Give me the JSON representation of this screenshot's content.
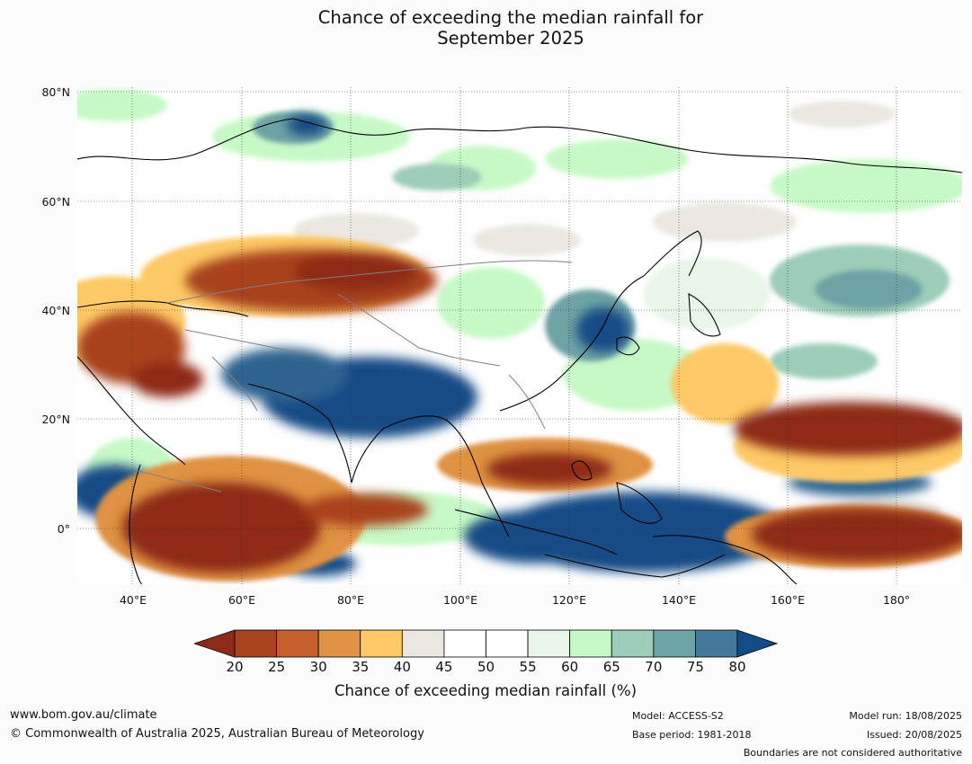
{
  "title": {
    "line1": "Chance of exceeding the median rainfall for",
    "line2": "September 2025"
  },
  "lat_labels": [
    "80°N",
    "60°N",
    "40°N",
    "20°N",
    "0°"
  ],
  "lon_labels": [
    "40°E",
    "60°E",
    "80°E",
    "100°E",
    "120°E",
    "140°E",
    "160°E",
    "180°"
  ],
  "colorbar": {
    "title": "Chance of exceeding median rainfall (%)",
    "ticks": [
      "20",
      "25",
      "30",
      "35",
      "40",
      "45",
      "50",
      "55",
      "60",
      "65",
      "70",
      "75",
      "80"
    ],
    "colors": [
      "#8e2a18",
      "#a8431f",
      "#c5602e",
      "#df9243",
      "#fdc966",
      "#ebe8e2",
      "#ffffff",
      "#ffffff",
      "#e8f5e8",
      "#c7f9c7",
      "#9bcdb8",
      "#6ea3a5",
      "#44789a",
      "#134b86"
    ]
  },
  "footer": {
    "website": "www.bom.gov.au/climate",
    "copyright": "© Commonwealth of Australia 2025, Australian Bureau of Meteorology",
    "model": "Model: ACCESS-S2",
    "base_period": "Base period: 1981-2018",
    "model_run": "Model run: 18/08/2025",
    "issued": "Issued: 20/08/2025",
    "disclaimer": "Boundaries are not considered authoritative"
  }
}
